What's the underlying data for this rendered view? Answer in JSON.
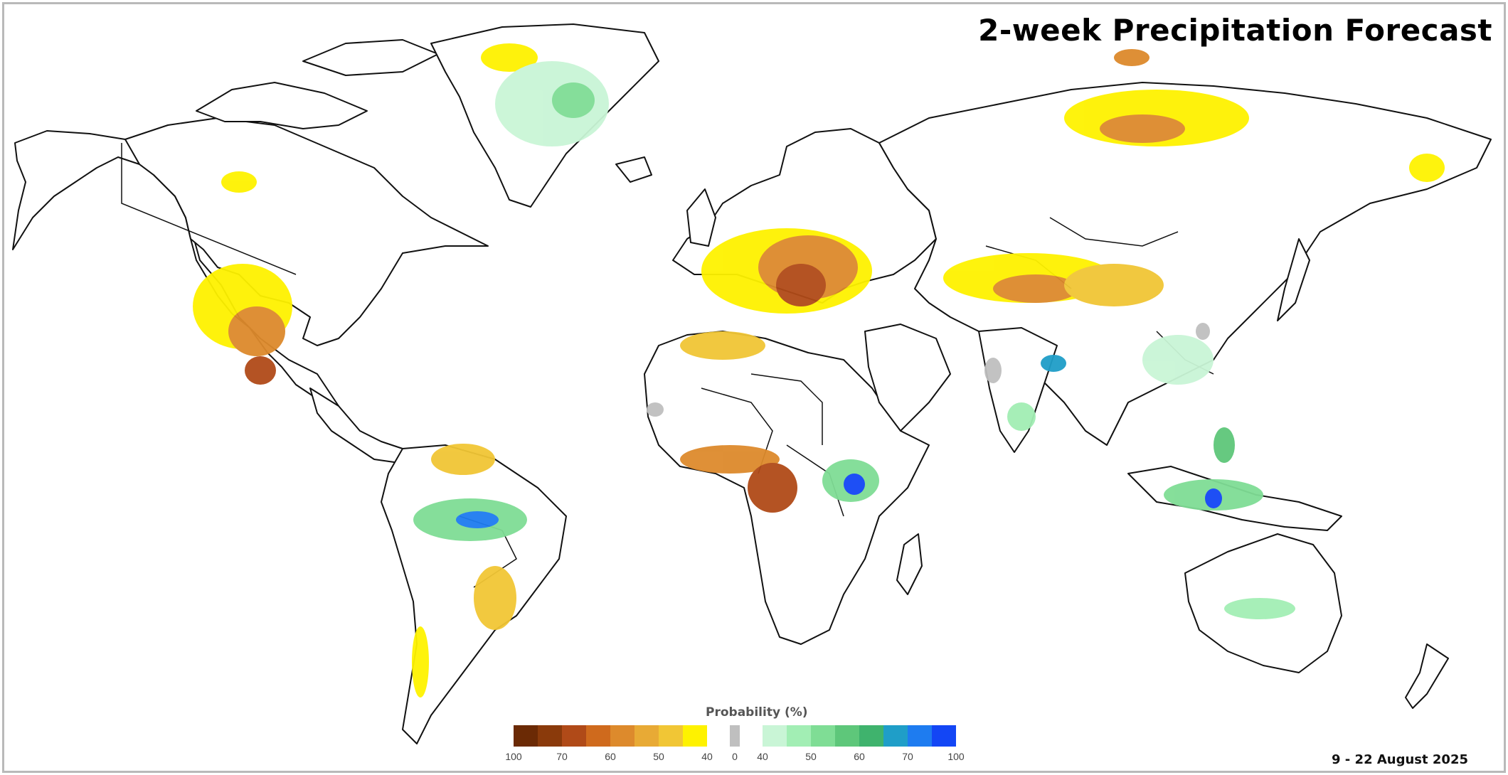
{
  "title": "2-week Precipitation Forecast",
  "date_range": "9 - 22 August 2025",
  "legend": {
    "title": "Probability (%)",
    "dry_colors": [
      "#6b2a05",
      "#8a3a0b",
      "#b04a18",
      "#cf6a1d",
      "#dd8a2c",
      "#e8aa35",
      "#f1c635",
      "#fef200"
    ],
    "neutral_color": "#bfbfbf",
    "wet_colors": [
      "#c9f5d6",
      "#a2eeb4",
      "#7fdd95",
      "#5ec77a",
      "#3fb36d",
      "#1f9ec8",
      "#1e7cf0",
      "#1346f5"
    ],
    "dry_ticks": [
      "100",
      "70",
      "60",
      "50",
      "40"
    ],
    "neutral_tick": "0",
    "wet_ticks": [
      "40",
      "50",
      "60",
      "70",
      "100"
    ]
  },
  "map": {
    "ocean_color": "#ffffff",
    "land_color": "#ffffff",
    "border_color": "#111111"
  }
}
